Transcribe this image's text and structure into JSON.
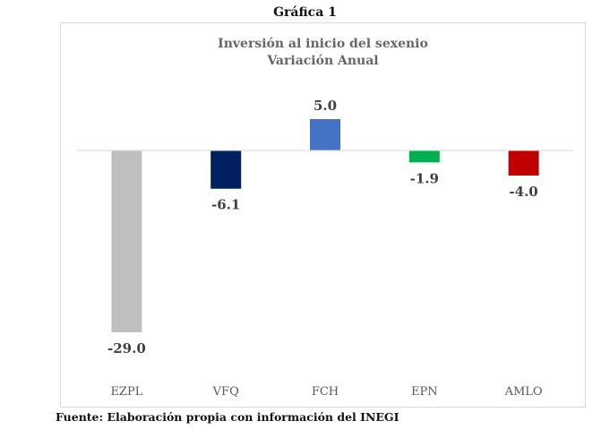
{
  "caption": "Gráfica 1",
  "source": "Fuente: Elaboración propia con información del INEGI",
  "chart_data": {
    "type": "bar",
    "title": [
      "Inversión al inicio del sexenio",
      "Variación Anual"
    ],
    "categories": [
      "EZPL",
      "VFQ",
      "FCH",
      "EPN",
      "AMLO"
    ],
    "values": [
      -29.0,
      -6.1,
      5.0,
      -1.9,
      -4.0
    ],
    "data_labels": [
      "-29.0",
      "-6.1",
      "5.0",
      "-1.9",
      "-4.0"
    ],
    "colors": [
      "#bfbfbf",
      "#002060",
      "#4472c4",
      "#00b050",
      "#c00000"
    ],
    "xlabel": "",
    "ylabel": "",
    "grid": false,
    "legend": "none"
  }
}
